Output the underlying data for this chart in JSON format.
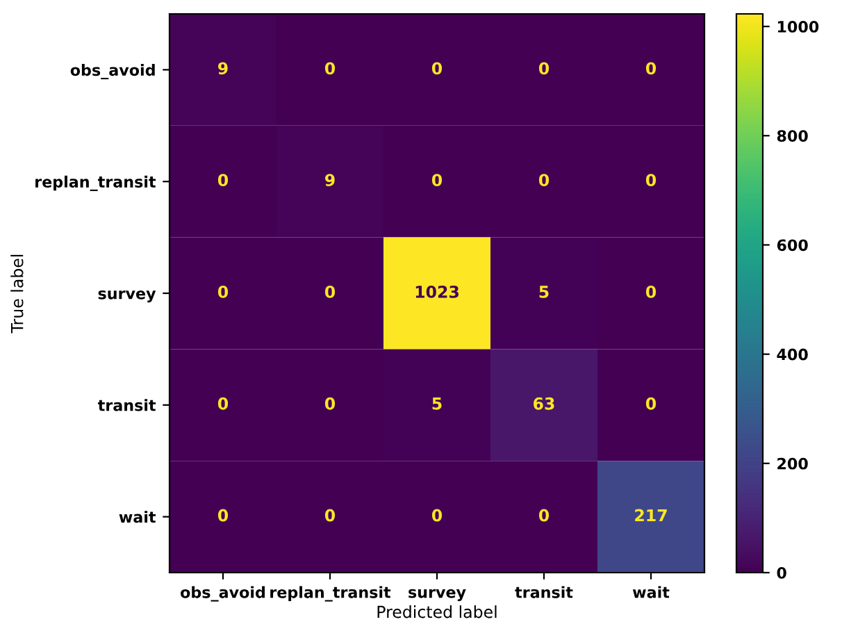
{
  "chart_data": {
    "type": "heatmap",
    "xlabel": "Predicted label",
    "ylabel": "True label",
    "categories": [
      "obs_avoid",
      "replan_transit",
      "survey",
      "transit",
      "wait"
    ],
    "y_categories": [
      "obs_avoid",
      "replan_transit",
      "survey",
      "transit",
      "wait"
    ],
    "cells": [
      [
        9,
        0,
        0,
        0,
        0
      ],
      [
        0,
        9,
        0,
        0,
        0
      ],
      [
        0,
        0,
        1023,
        5,
        0
      ],
      [
        0,
        0,
        5,
        63,
        0
      ],
      [
        0,
        0,
        0,
        0,
        217
      ]
    ],
    "clim": [
      0,
      1023
    ],
    "cticks": [
      0,
      200,
      400,
      600,
      800,
      1000
    ],
    "data_labels": true,
    "grid": false
  }
}
